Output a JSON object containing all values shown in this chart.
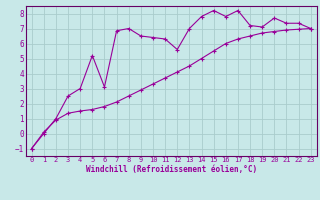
{
  "xlabel": "Windchill (Refroidissement éolien,°C)",
  "background_color": "#c8e8e8",
  "line_color": "#990099",
  "grid_color": "#aacccc",
  "xlim": [
    -0.5,
    23.5
  ],
  "ylim": [
    -1.5,
    8.5
  ],
  "xticks": [
    0,
    1,
    2,
    3,
    4,
    5,
    6,
    7,
    8,
    9,
    10,
    11,
    12,
    13,
    14,
    15,
    16,
    17,
    18,
    19,
    20,
    21,
    22,
    23
  ],
  "yticks": [
    -1,
    0,
    1,
    2,
    3,
    4,
    5,
    6,
    7,
    8
  ],
  "curve1_x": [
    0,
    1,
    2,
    3,
    4,
    5,
    6,
    7,
    8,
    9,
    10,
    11,
    12,
    13,
    14,
    15,
    16,
    17,
    18,
    19,
    20,
    21,
    22,
    23
  ],
  "curve1_y": [
    -1,
    0.0,
    1.0,
    2.5,
    3.0,
    5.2,
    3.1,
    6.85,
    7.0,
    6.5,
    6.4,
    6.3,
    5.6,
    7.0,
    7.8,
    8.2,
    7.8,
    8.2,
    7.2,
    7.1,
    7.7,
    7.35,
    7.35,
    7.0
  ],
  "curve2_x": [
    0,
    1,
    2,
    3,
    4,
    5,
    6,
    7,
    8,
    9,
    10,
    11,
    12,
    13,
    14,
    15,
    16,
    17,
    18,
    19,
    20,
    21,
    22,
    23
  ],
  "curve2_y": [
    -1,
    0.1,
    0.9,
    1.35,
    1.5,
    1.6,
    1.8,
    2.1,
    2.5,
    2.9,
    3.3,
    3.7,
    4.1,
    4.5,
    5.0,
    5.5,
    6.0,
    6.3,
    6.5,
    6.7,
    6.8,
    6.9,
    6.95,
    7.0
  ],
  "spine_color": "#660066",
  "xlabel_fontsize": 5.5,
  "tick_fontsize": 5.5,
  "xtick_fontsize": 5.0,
  "linewidth": 0.8,
  "markersize": 3.0
}
